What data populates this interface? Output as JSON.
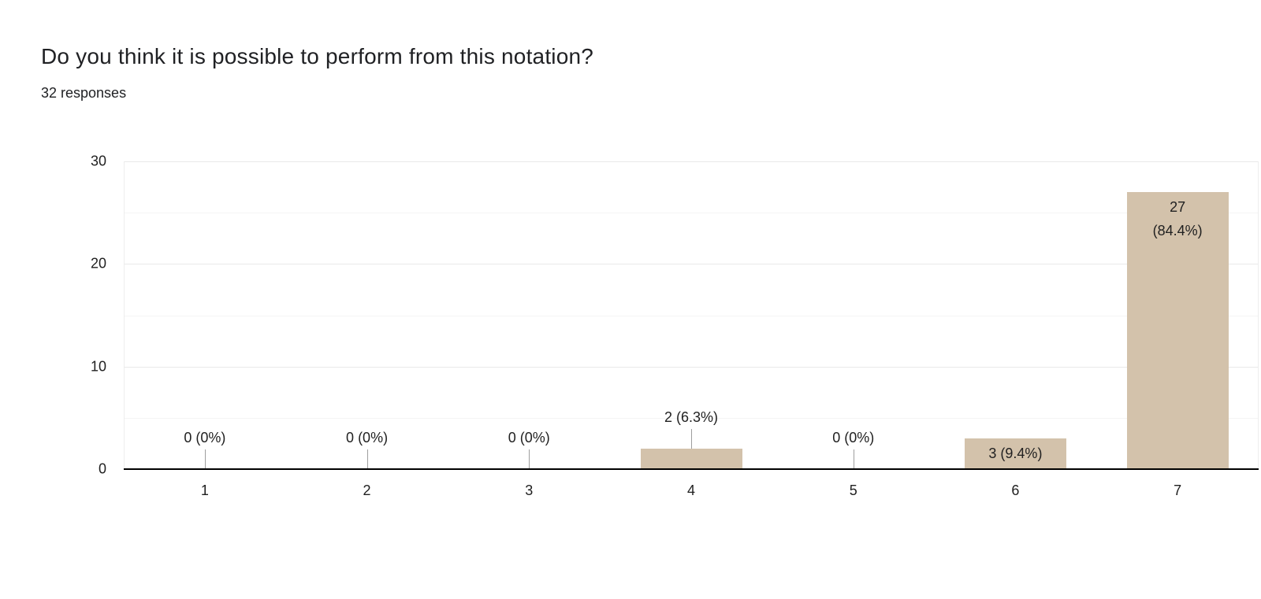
{
  "header": {
    "title": "Do you think it is possible to perform from this notation?",
    "subtitle": "32 responses"
  },
  "colors": {
    "bar_fill": "#d3c2ab",
    "axis_line": "#000000",
    "gridline_major": "#e9e9e9",
    "gridline_minor": "#f5f5f5",
    "plot_border": "#ededed",
    "stem": "#9e9e9e",
    "data_label_text": "#212121",
    "tick_label_text": "#1f1f1f",
    "title_text": "#202124"
  },
  "chart_data": {
    "type": "bar",
    "title": "Do you think it is possible to perform from this notation?",
    "subtitle": "32 responses",
    "categories": [
      "1",
      "2",
      "3",
      "4",
      "5",
      "6",
      "7"
    ],
    "values": [
      0,
      0,
      0,
      2,
      0,
      3,
      27
    ],
    "data_labels": [
      "0 (0%)",
      "0 (0%)",
      "0 (0%)",
      "2 (6.3%)",
      "0 (0%)",
      "3 (9.4%)",
      "27 (84.4%)"
    ],
    "label_lines": [
      [
        "0 (0%)"
      ],
      [
        "0 (0%)"
      ],
      [
        "0 (0%)"
      ],
      [
        "2 (6.3%)"
      ],
      [
        "0 (0%)"
      ],
      [
        "3 (9.4%)"
      ],
      [
        "27",
        "(84.4%)"
      ]
    ],
    "label_placements": [
      "stem",
      "stem",
      "stem",
      "stem",
      "stem",
      "inside",
      "inside-top"
    ],
    "xlabel": "",
    "ylabel": "",
    "ylim": [
      0,
      30
    ],
    "yticks": [
      0,
      10,
      20,
      30
    ],
    "minor_grid_step": 5,
    "grid": true,
    "legend": "none",
    "bar_color": "#d3c2ab"
  }
}
